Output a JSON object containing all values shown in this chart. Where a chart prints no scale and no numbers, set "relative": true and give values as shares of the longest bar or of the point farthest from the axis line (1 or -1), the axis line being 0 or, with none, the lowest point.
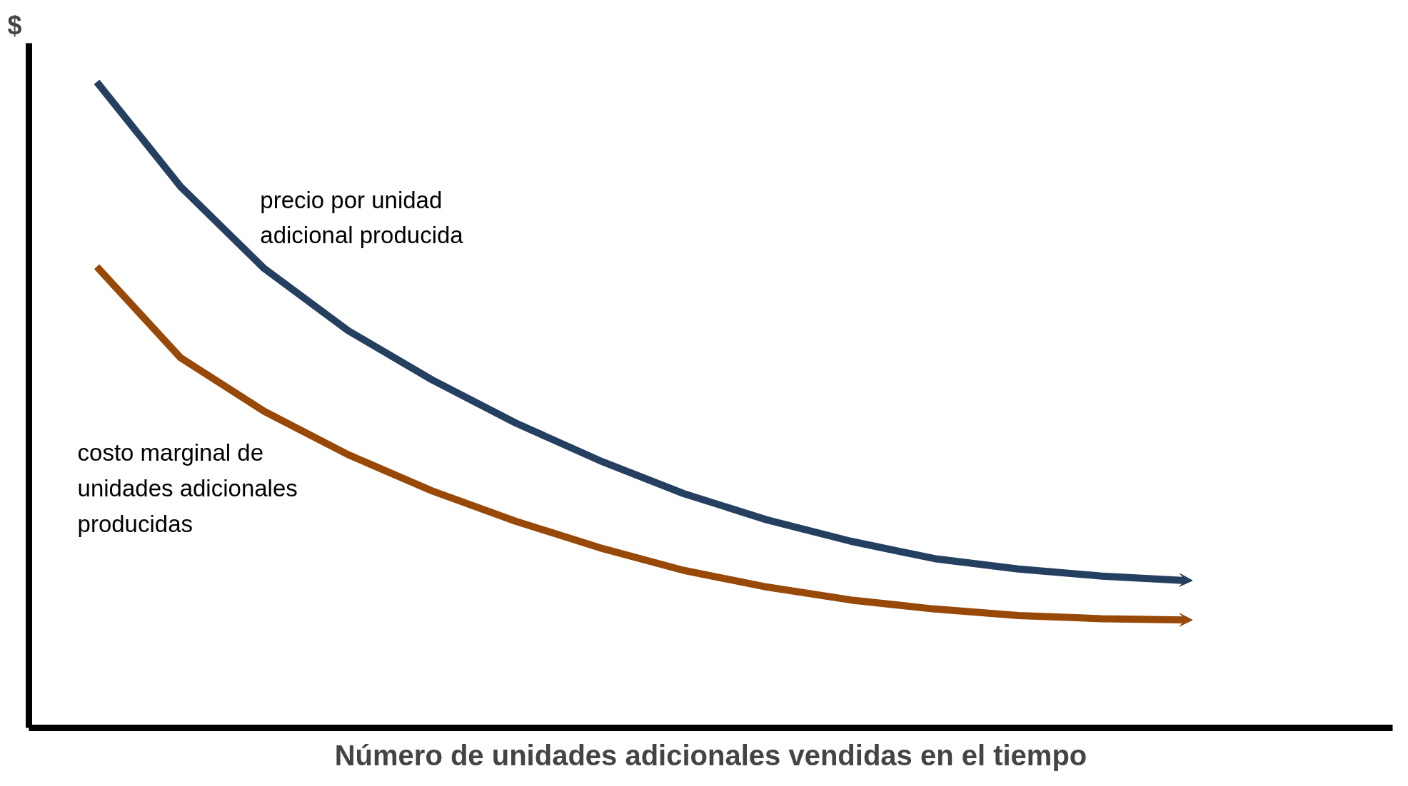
{
  "chart_data": {
    "type": "line",
    "relative": true,
    "xlabel": "Número de unidades adicionales vendidas en el tiempo",
    "ylabel": "$",
    "categories": [
      null,
      null,
      null,
      null,
      null,
      null,
      null,
      null,
      null,
      null,
      null,
      null,
      null,
      null
    ],
    "series": [
      {
        "name": "precio por unidad adicional producida",
        "color": "#243f60",
        "values": [
          1.0,
          0.838,
          0.711,
          0.615,
          0.539,
          0.472,
          0.414,
          0.363,
          0.322,
          0.289,
          0.262,
          0.246,
          0.235,
          0.228
        ]
      },
      {
        "name": "costo marginal de unidades adicionales producidas",
        "color": "#984807",
        "values": [
          0.714,
          0.573,
          0.49,
          0.423,
          0.367,
          0.32,
          0.279,
          0.244,
          0.218,
          0.198,
          0.184,
          0.174,
          0.169,
          0.167
        ]
      }
    ],
    "legend": false,
    "grid": false,
    "marker": "none",
    "line_style": "solid"
  }
}
